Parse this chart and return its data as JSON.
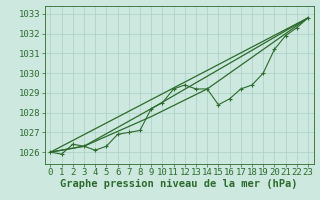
{
  "background_color": "#cce8df",
  "grid_color": "#aacfc5",
  "line_color": "#2d6b2d",
  "xlabel": "Graphe pression niveau de la mer (hPa)",
  "xlabel_fontsize": 7.5,
  "tick_fontsize": 6.5,
  "ylim": [
    1025.4,
    1033.4
  ],
  "xlim": [
    -0.5,
    23.5
  ],
  "yticks": [
    1026,
    1027,
    1028,
    1029,
    1030,
    1031,
    1032,
    1033
  ],
  "xticks": [
    0,
    1,
    2,
    3,
    4,
    5,
    6,
    7,
    8,
    9,
    10,
    11,
    12,
    13,
    14,
    15,
    16,
    17,
    18,
    19,
    20,
    21,
    22,
    23
  ],
  "series1": [
    1026.0,
    1025.9,
    1026.4,
    1026.3,
    1026.1,
    1026.3,
    1026.9,
    1027.0,
    1027.1,
    1028.2,
    1028.5,
    1029.2,
    1029.4,
    1029.2,
    1029.2,
    1028.4,
    1028.7,
    1029.2,
    1029.4,
    1030.0,
    1031.2,
    1031.9,
    1032.3,
    1032.8
  ],
  "series_straight": [
    [
      0,
      23
    ],
    [
      1026.0,
      1032.8
    ]
  ],
  "series_upper": [
    [
      0,
      3,
      9,
      23
    ],
    [
      1026.0,
      1026.3,
      1028.2,
      1032.8
    ]
  ],
  "series_lower": [
    [
      0,
      3,
      9,
      14,
      23
    ],
    [
      1026.0,
      1026.3,
      1027.8,
      1029.2,
      1032.8
    ]
  ]
}
